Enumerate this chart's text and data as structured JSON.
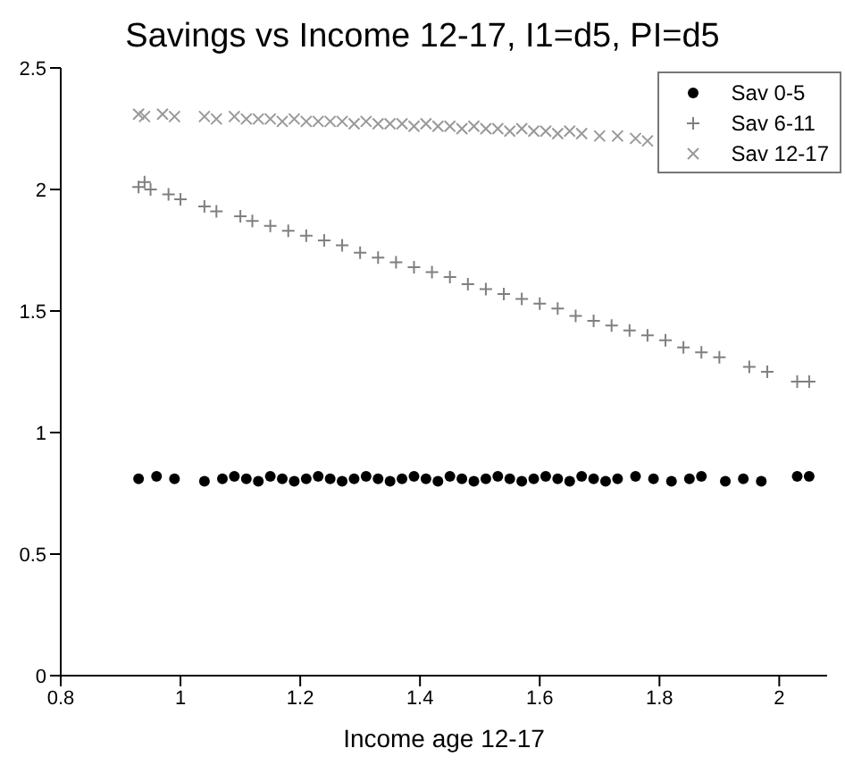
{
  "chart_data": {
    "type": "scatter",
    "title": "Savings vs Income 12-17, I1=d5, PI=d5",
    "xlabel": "Income age 12-17",
    "xlim": [
      0.8,
      2.08
    ],
    "xticks": [
      0.8,
      1,
      1.2,
      1.4,
      1.6,
      1.8,
      2
    ],
    "ylim": [
      0,
      2.5
    ],
    "yticks": [
      0,
      0.5,
      1,
      1.5,
      2,
      2.5
    ],
    "grid": false,
    "legend": "top right",
    "series": [
      {
        "name": "Sav 0-5",
        "color": "#000000",
        "marker": "circle",
        "x": [
          0.93,
          0.96,
          0.99,
          1.04,
          1.07,
          1.09,
          1.11,
          1.13,
          1.15,
          1.17,
          1.19,
          1.21,
          1.23,
          1.25,
          1.27,
          1.29,
          1.31,
          1.33,
          1.35,
          1.37,
          1.39,
          1.41,
          1.43,
          1.45,
          1.47,
          1.49,
          1.51,
          1.53,
          1.55,
          1.57,
          1.59,
          1.61,
          1.63,
          1.65,
          1.67,
          1.69,
          1.71,
          1.73,
          1.76,
          1.79,
          1.82,
          1.85,
          1.87,
          1.91,
          1.94,
          1.97,
          2.03,
          2.05
        ],
        "values": [
          0.81,
          0.82,
          0.81,
          0.8,
          0.81,
          0.82,
          0.81,
          0.8,
          0.82,
          0.81,
          0.8,
          0.81,
          0.82,
          0.81,
          0.8,
          0.81,
          0.82,
          0.81,
          0.8,
          0.81,
          0.82,
          0.81,
          0.8,
          0.82,
          0.81,
          0.8,
          0.81,
          0.82,
          0.81,
          0.8,
          0.81,
          0.82,
          0.81,
          0.8,
          0.82,
          0.81,
          0.8,
          0.81,
          0.82,
          0.81,
          0.8,
          0.81,
          0.82,
          0.8,
          0.81,
          0.8,
          0.82,
          0.82
        ]
      },
      {
        "name": "Sav 6-11",
        "color": "#808080",
        "marker": "cross",
        "x": [
          0.93,
          0.94,
          0.95,
          0.98,
          1.0,
          1.04,
          1.06,
          1.1,
          1.12,
          1.15,
          1.18,
          1.21,
          1.24,
          1.27,
          1.3,
          1.33,
          1.36,
          1.39,
          1.42,
          1.45,
          1.48,
          1.51,
          1.54,
          1.57,
          1.6,
          1.63,
          1.66,
          1.69,
          1.72,
          1.75,
          1.78,
          1.81,
          1.84,
          1.87,
          1.9,
          1.95,
          1.98,
          2.03,
          2.05
        ],
        "values": [
          2.01,
          2.03,
          2.0,
          1.98,
          1.96,
          1.93,
          1.91,
          1.89,
          1.87,
          1.85,
          1.83,
          1.81,
          1.79,
          1.77,
          1.74,
          1.72,
          1.7,
          1.68,
          1.66,
          1.64,
          1.61,
          1.59,
          1.57,
          1.55,
          1.53,
          1.51,
          1.48,
          1.46,
          1.44,
          1.42,
          1.4,
          1.38,
          1.35,
          1.33,
          1.31,
          1.27,
          1.25,
          1.21,
          1.21
        ]
      },
      {
        "name": "Sav 12-17",
        "color": "#999999",
        "marker": "x",
        "x": [
          0.93,
          0.94,
          0.97,
          0.99,
          1.04,
          1.06,
          1.09,
          1.11,
          1.13,
          1.15,
          1.17,
          1.19,
          1.21,
          1.23,
          1.25,
          1.27,
          1.29,
          1.31,
          1.33,
          1.35,
          1.37,
          1.39,
          1.41,
          1.43,
          1.45,
          1.47,
          1.49,
          1.51,
          1.53,
          1.55,
          1.57,
          1.59,
          1.61,
          1.63,
          1.65,
          1.67,
          1.7,
          1.73,
          1.76,
          1.78
        ],
        "values": [
          2.31,
          2.3,
          2.31,
          2.3,
          2.3,
          2.29,
          2.3,
          2.29,
          2.29,
          2.29,
          2.28,
          2.29,
          2.28,
          2.28,
          2.28,
          2.28,
          2.27,
          2.28,
          2.27,
          2.27,
          2.27,
          2.26,
          2.27,
          2.26,
          2.26,
          2.25,
          2.26,
          2.25,
          2.25,
          2.24,
          2.25,
          2.24,
          2.24,
          2.23,
          2.24,
          2.23,
          2.22,
          2.22,
          2.21,
          2.2
        ]
      }
    ]
  }
}
